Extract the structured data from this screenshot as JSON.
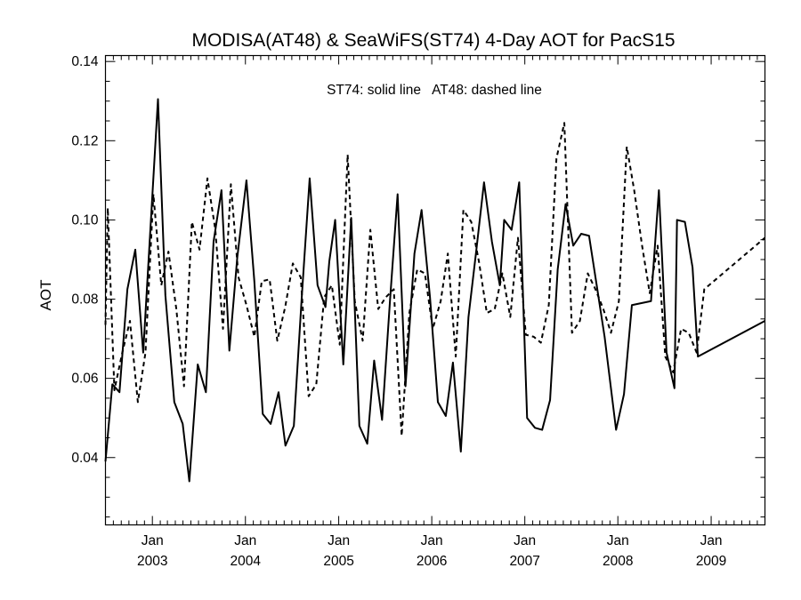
{
  "chart_data": {
    "type": "line",
    "title": "MODISA(AT48) & SeaWiFS(ST74) 4-Day AOT for PacS15",
    "annotation": "ST74: solid line   AT48: dashed line",
    "ylabel": "AOT",
    "xlabel": "",
    "ylim": [
      0.023,
      0.1415
    ],
    "xlim": [
      "2002-07-01",
      "2009-07-31"
    ],
    "y_ticks": [
      "0.04",
      "0.06",
      "0.08",
      "0.10",
      "0.12",
      "0.14"
    ],
    "x_ticks": [
      {
        "date": "2003-01-01",
        "month": "Jan",
        "year": "2003"
      },
      {
        "date": "2004-01-01",
        "month": "Jan",
        "year": "2004"
      },
      {
        "date": "2005-01-01",
        "month": "Jan",
        "year": "2005"
      },
      {
        "date": "2006-01-01",
        "month": "Jan",
        "year": "2006"
      },
      {
        "date": "2007-01-01",
        "month": "Jan",
        "year": "2007"
      },
      {
        "date": "2008-01-01",
        "month": "Jan",
        "year": "2008"
      },
      {
        "date": "2009-01-01",
        "month": "Jan",
        "year": "2009"
      }
    ],
    "grid": false,
    "legend": "none",
    "series": [
      {
        "style": "solid",
        "color": "#000000",
        "points": [
          [
            "2002-07-01",
            0.039
          ],
          [
            "2002-07-28",
            0.0585
          ],
          [
            "2002-08-25",
            0.0565
          ],
          [
            "2002-09-25",
            0.0825
          ],
          [
            "2002-10-26",
            0.0925
          ],
          [
            "2002-11-26",
            0.0665
          ],
          [
            "2003-01-23",
            0.1305
          ],
          [
            "2003-02-21",
            0.081
          ],
          [
            "2003-03-28",
            0.054
          ],
          [
            "2003-04-30",
            0.0485
          ],
          [
            "2003-05-26",
            0.034
          ],
          [
            "2003-06-28",
            0.0635
          ],
          [
            "2003-07-30",
            0.0565
          ],
          [
            "2003-08-29",
            0.0945
          ],
          [
            "2003-09-29",
            0.1075
          ],
          [
            "2003-10-30",
            0.067
          ],
          [
            "2003-11-30",
            0.0905
          ],
          [
            "2004-01-05",
            0.11
          ],
          [
            "2004-02-05",
            0.0845
          ],
          [
            "2004-03-09",
            0.051
          ],
          [
            "2004-04-09",
            0.0485
          ],
          [
            "2004-05-10",
            0.0565
          ],
          [
            "2004-06-06",
            0.043
          ],
          [
            "2004-07-09",
            0.048
          ],
          [
            "2004-08-09",
            0.0805
          ],
          [
            "2004-09-09",
            0.1105
          ],
          [
            "2004-10-10",
            0.0835
          ],
          [
            "2004-11-10",
            0.078
          ],
          [
            "2004-11-25",
            0.0895
          ],
          [
            "2004-12-18",
            0.1
          ],
          [
            "2005-01-19",
            0.0635
          ],
          [
            "2005-02-19",
            0.1005
          ],
          [
            "2005-03-23",
            0.048
          ],
          [
            "2005-04-23",
            0.0435
          ],
          [
            "2005-05-20",
            0.0645
          ],
          [
            "2005-06-20",
            0.0495
          ],
          [
            "2005-07-21",
            0.0795
          ],
          [
            "2005-08-20",
            0.1065
          ],
          [
            "2005-09-20",
            0.058
          ],
          [
            "2005-10-25",
            0.0915
          ],
          [
            "2005-11-22",
            0.1025
          ],
          [
            "2005-12-25",
            0.0805
          ],
          [
            "2006-01-25",
            0.054
          ],
          [
            "2006-02-25",
            0.0505
          ],
          [
            "2006-03-25",
            0.064
          ],
          [
            "2006-04-25",
            0.0415
          ],
          [
            "2006-05-25",
            0.0755
          ],
          [
            "2006-06-25",
            0.0925
          ],
          [
            "2006-07-25",
            0.1095
          ],
          [
            "2006-08-25",
            0.0945
          ],
          [
            "2006-09-25",
            0.0835
          ],
          [
            "2006-10-12",
            0.1
          ],
          [
            "2006-11-10",
            0.0975
          ],
          [
            "2006-12-10",
            0.1095
          ],
          [
            "2007-01-10",
            0.05
          ],
          [
            "2007-02-10",
            0.0475
          ],
          [
            "2007-03-10",
            0.047
          ],
          [
            "2007-04-10",
            0.0545
          ],
          [
            "2007-05-10",
            0.0875
          ],
          [
            "2007-06-10",
            0.104
          ],
          [
            "2007-07-10",
            0.0935
          ],
          [
            "2007-08-10",
            0.0965
          ],
          [
            "2007-09-10",
            0.096
          ],
          [
            "2007-10-10",
            0.0835
          ],
          [
            "2007-11-10",
            0.0705
          ],
          [
            "2007-12-25",
            0.047
          ],
          [
            "2008-01-25",
            0.056
          ],
          [
            "2008-02-25",
            0.0785
          ],
          [
            "2008-05-10",
            0.0795
          ],
          [
            "2008-06-10",
            0.1075
          ],
          [
            "2008-07-10",
            0.0665
          ],
          [
            "2008-08-10",
            0.0575
          ],
          [
            "2008-08-20",
            0.1
          ],
          [
            "2008-09-20",
            0.0995
          ],
          [
            "2008-10-20",
            0.088
          ],
          [
            "2008-11-10",
            0.0655
          ],
          [
            "2009-07-31",
            0.0745
          ]
        ]
      },
      {
        "style": "dashed",
        "color": "#000000",
        "points": [
          [
            "2002-07-01",
            0.0735
          ],
          [
            "2002-07-10",
            0.103
          ],
          [
            "2002-08-05",
            0.057
          ],
          [
            "2002-09-05",
            0.0665
          ],
          [
            "2002-10-05",
            0.0745
          ],
          [
            "2002-11-05",
            0.054
          ],
          [
            "2002-12-05",
            0.0665
          ],
          [
            "2003-01-05",
            0.1065
          ],
          [
            "2003-02-05",
            0.0835
          ],
          [
            "2003-03-05",
            0.092
          ],
          [
            "2003-04-05",
            0.0775
          ],
          [
            "2003-05-05",
            0.058
          ],
          [
            "2003-06-05",
            0.0995
          ],
          [
            "2003-07-05",
            0.0925
          ],
          [
            "2003-08-05",
            0.1105
          ],
          [
            "2003-09-05",
            0.0975
          ],
          [
            "2003-10-05",
            0.0725
          ],
          [
            "2003-11-05",
            0.109
          ],
          [
            "2003-12-05",
            0.0855
          ],
          [
            "2004-01-05",
            0.0785
          ],
          [
            "2004-02-05",
            0.0705
          ],
          [
            "2004-03-05",
            0.0845
          ],
          [
            "2004-04-05",
            0.085
          ],
          [
            "2004-05-05",
            0.0695
          ],
          [
            "2004-06-05",
            0.078
          ],
          [
            "2004-07-05",
            0.089
          ],
          [
            "2004-08-05",
            0.0855
          ],
          [
            "2004-09-05",
            0.0555
          ],
          [
            "2004-10-05",
            0.0585
          ],
          [
            "2004-11-05",
            0.0805
          ],
          [
            "2004-12-05",
            0.0835
          ],
          [
            "2005-01-05",
            0.0685
          ],
          [
            "2005-02-05",
            0.1165
          ],
          [
            "2005-03-05",
            0.0795
          ],
          [
            "2005-04-05",
            0.0695
          ],
          [
            "2005-05-05",
            0.0975
          ],
          [
            "2005-06-05",
            0.0775
          ],
          [
            "2005-07-05",
            0.0805
          ],
          [
            "2005-08-05",
            0.0825
          ],
          [
            "2005-09-05",
            0.0455
          ],
          [
            "2005-10-05",
            0.0765
          ],
          [
            "2005-11-05",
            0.0875
          ],
          [
            "2005-12-05",
            0.0865
          ],
          [
            "2006-01-05",
            0.0725
          ],
          [
            "2006-02-05",
            0.0795
          ],
          [
            "2006-03-05",
            0.0915
          ],
          [
            "2006-04-05",
            0.0655
          ],
          [
            "2006-05-05",
            0.1025
          ],
          [
            "2006-06-05",
            0.0995
          ],
          [
            "2006-07-05",
            0.0895
          ],
          [
            "2006-08-05",
            0.0765
          ],
          [
            "2006-09-05",
            0.0775
          ],
          [
            "2006-10-05",
            0.0865
          ],
          [
            "2006-11-05",
            0.0755
          ],
          [
            "2006-12-05",
            0.0955
          ],
          [
            "2007-01-05",
            0.071
          ],
          [
            "2007-02-05",
            0.0705
          ],
          [
            "2007-03-05",
            0.069
          ],
          [
            "2007-04-05",
            0.0785
          ],
          [
            "2007-05-05",
            0.1155
          ],
          [
            "2007-06-05",
            0.1245
          ],
          [
            "2007-07-05",
            0.0715
          ],
          [
            "2007-08-05",
            0.0745
          ],
          [
            "2007-09-05",
            0.0865
          ],
          [
            "2007-10-05",
            0.0825
          ],
          [
            "2007-11-05",
            0.0775
          ],
          [
            "2007-12-05",
            0.0715
          ],
          [
            "2008-01-05",
            0.0795
          ],
          [
            "2008-02-05",
            0.1185
          ],
          [
            "2008-03-05",
            0.1075
          ],
          [
            "2008-04-05",
            0.0935
          ],
          [
            "2008-05-05",
            0.0815
          ],
          [
            "2008-06-05",
            0.0935
          ],
          [
            "2008-07-05",
            0.0655
          ],
          [
            "2008-08-05",
            0.0615
          ],
          [
            "2008-09-05",
            0.0725
          ],
          [
            "2008-10-05",
            0.0715
          ],
          [
            "2008-11-05",
            0.0665
          ],
          [
            "2008-12-05",
            0.0825
          ],
          [
            "2009-07-31",
            0.0955
          ]
        ]
      }
    ]
  }
}
